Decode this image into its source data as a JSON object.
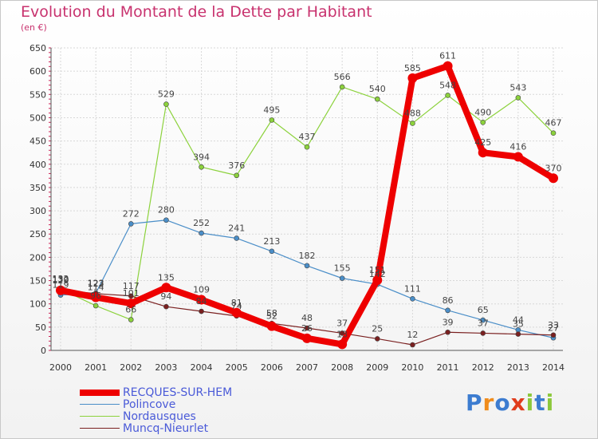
{
  "chart_data": {
    "type": "line",
    "title": "Evolution du Montant de la Dette par Habitant",
    "subtitle": "(en €)",
    "x": [
      "2000",
      "2001",
      "2002",
      "2003",
      "2004",
      "2005",
      "2006",
      "2007",
      "2008",
      "2009",
      "2010",
      "2011",
      "2012",
      "2013",
      "2014"
    ],
    "ylim": [
      0,
      650
    ],
    "yticks": [
      0,
      50,
      100,
      150,
      200,
      250,
      300,
      350,
      400,
      450,
      500,
      550,
      600,
      650
    ],
    "grid": true,
    "legend": "bottom-left",
    "series": [
      {
        "name": "RECQUES-SUR-HEM",
        "color": "#ee0000",
        "values": [
          129,
          114,
          101,
          135,
          109,
          81,
          52,
          26,
          13,
          151,
          585,
          611,
          425,
          416,
          370
        ]
      },
      {
        "name": "Polincove",
        "color": "#4a8ec8",
        "values": [
          119,
          123,
          272,
          280,
          252,
          241,
          213,
          182,
          155,
          142,
          111,
          86,
          65,
          44,
          27
        ]
      },
      {
        "name": "Nordausques",
        "color": "#8cd23c",
        "values": [
          132,
          96,
          66,
          529,
          394,
          376,
          495,
          437,
          566,
          540,
          488,
          548,
          490,
          543,
          467
        ]
      },
      {
        "name": "Muncq-Nieurlet",
        "color": "#7a2020",
        "values": [
          130,
          122,
          117,
          94,
          84,
          74,
          58,
          48,
          37,
          25,
          12,
          39,
          37,
          35,
          33
        ]
      }
    ]
  },
  "logo": {
    "letters": [
      "P",
      "r",
      "o",
      "x",
      "i",
      "t",
      "i"
    ],
    "colors": [
      "#3c7cd0",
      "#f08c1c",
      "#3c7cd0",
      "#e03c1c",
      "#8cc83c",
      "#3c7cd0",
      "#8cc83c"
    ]
  }
}
